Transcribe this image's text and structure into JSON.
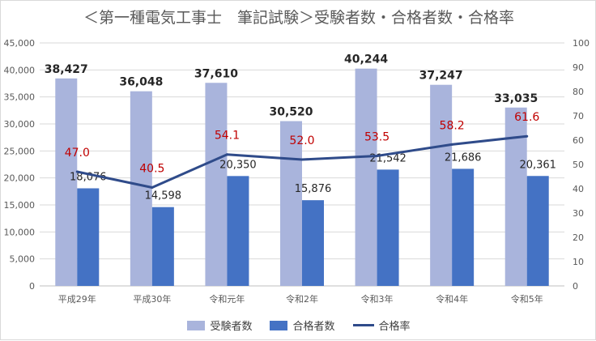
{
  "title": "＜第一種電気工事士　筆記試験＞受験者数・合格者数・合格率",
  "colors": {
    "applicants": "#a9b4dc",
    "passers": "#4472c4",
    "rate": "#2f4b8a",
    "rate_label": "#c00000"
  },
  "chart_data": {
    "type": "bar",
    "categories": [
      "平成29年",
      "平成30年",
      "令和元年",
      "令和2年",
      "令和3年",
      "令和4年",
      "令和5年"
    ],
    "series": [
      {
        "name": "受験者数",
        "type": "bar",
        "axis": "left",
        "values": [
          38427,
          36048,
          37610,
          30520,
          40244,
          37247,
          33035
        ],
        "labels": [
          "38,427",
          "36,048",
          "37,610",
          "30,520",
          "40,244",
          "37,247",
          "33,035"
        ]
      },
      {
        "name": "合格者数",
        "type": "bar",
        "axis": "left",
        "values": [
          18076,
          14598,
          20350,
          15876,
          21542,
          21686,
          20361
        ],
        "labels": [
          "18,076",
          "14,598",
          "20,350",
          "15,876",
          "21,542",
          "21,686",
          "20,361"
        ]
      },
      {
        "name": "合格率",
        "type": "line",
        "axis": "right",
        "values": [
          47.0,
          40.5,
          54.1,
          52.0,
          53.5,
          58.2,
          61.6
        ],
        "labels": [
          "47.0",
          "40.5",
          "54.1",
          "52.0",
          "53.5",
          "58.2",
          "61.6"
        ]
      }
    ],
    "ylim_left": [
      0,
      45000
    ],
    "ylim_right": [
      0,
      100
    ],
    "left_ticks": [
      "0",
      "5,000",
      "10,000",
      "15,000",
      "20,000",
      "25,000",
      "30,000",
      "35,000",
      "40,000",
      "45,000"
    ],
    "right_ticks": [
      "0",
      "10",
      "20",
      "30",
      "40",
      "50",
      "60",
      "70",
      "80",
      "90",
      "100"
    ],
    "grid": true,
    "legend_position": "bottom"
  }
}
